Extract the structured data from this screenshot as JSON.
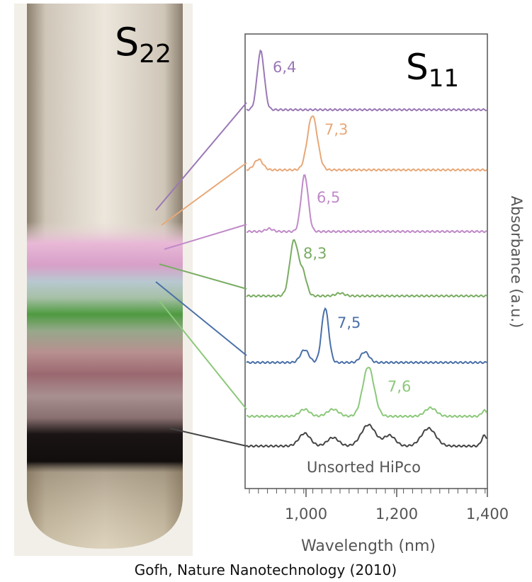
{
  "figure": {
    "photo_label": {
      "letter": "S",
      "subscript": "22"
    },
    "plot_label": {
      "letter": "S",
      "subscript": "11"
    },
    "spectra": [
      {
        "label": "6,4",
        "color": "#9a78b5"
      },
      {
        "label": "7,3",
        "color": "#e8a878"
      },
      {
        "label": "6,5",
        "color": "#c08ac8"
      },
      {
        "label": "8,3",
        "color": "#7aac62"
      },
      {
        "label": "7,5",
        "color": "#4a70a8"
      },
      {
        "label": "7,6",
        "color": "#8cc87a"
      },
      {
        "label": "Unsorted HiPco",
        "color": "#444444"
      }
    ],
    "x_tick_labels": [
      "1,000",
      "1,200",
      "1,400"
    ],
    "x_axis_label": "Wavelength (nm)",
    "y_axis_label": "Absorbance (a.u.)",
    "caption": "Gofh, Nature Nanotechnology (2010)"
  }
}
